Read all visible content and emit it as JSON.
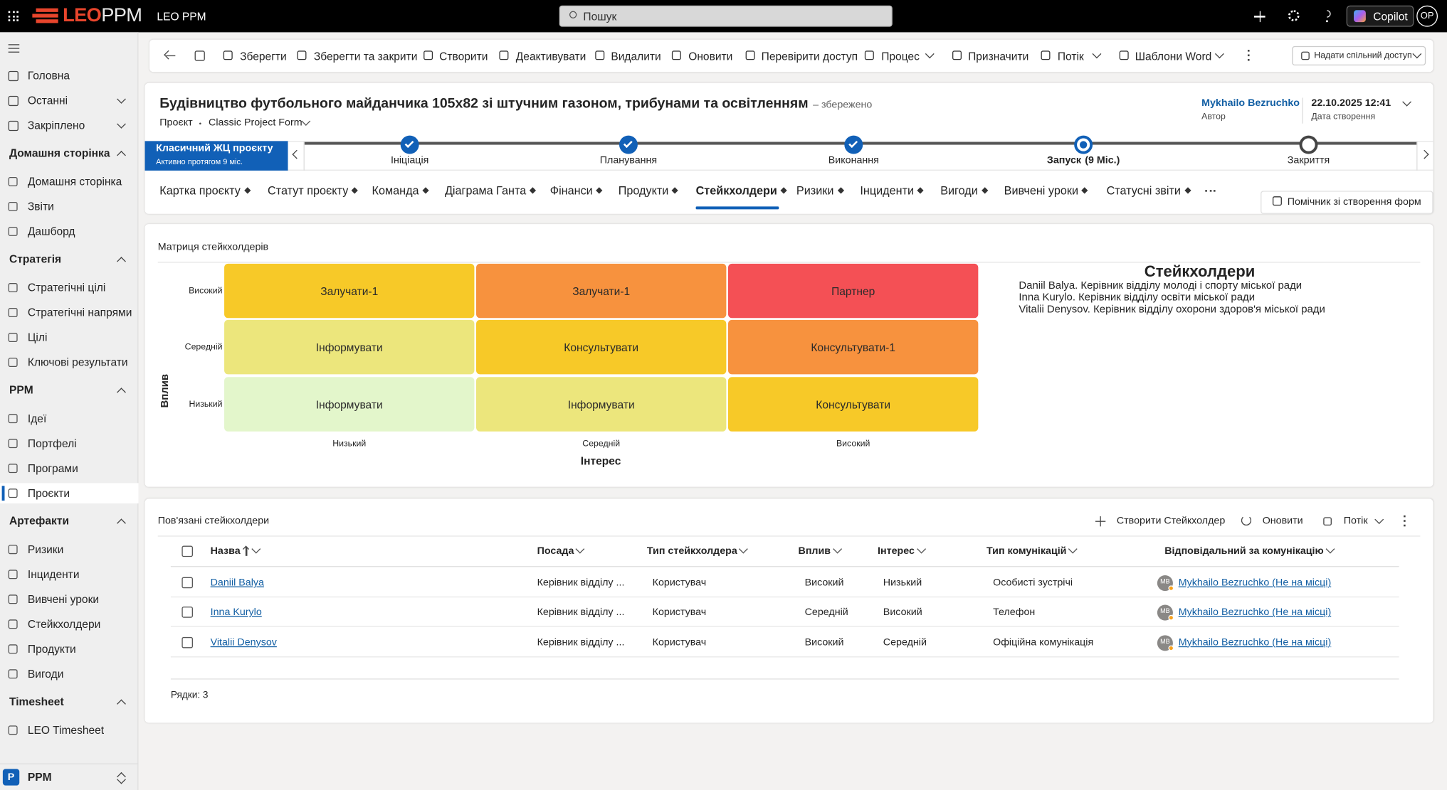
{
  "top_bar": {
    "logo_main": "LEO",
    "logo_sub": "PPM",
    "app_name": "LEO PPM",
    "search_placeholder": "Пошук",
    "copilot": "Copilot",
    "user_initials": "OP"
  },
  "sidebar": {
    "top_items": [
      "Головна",
      "Останні",
      "Закріплено"
    ],
    "groups": [
      {
        "title": "Домашня сторінка",
        "items": [
          "Домашня сторінка",
          "Звіти",
          "Дашборд"
        ]
      },
      {
        "title": "Стратегія",
        "items": [
          "Стратегічні цілі",
          "Стратегічні напрями",
          "Цілі",
          "Ключові результати"
        ]
      },
      {
        "title": "PPM",
        "items": [
          "Ідеї",
          "Портфелі",
          "Програми",
          "Проєкти"
        ]
      },
      {
        "title": "Артефакти",
        "items": [
          "Ризики",
          "Інциденти",
          "Вивчені уроки",
          "Стейкхолдери",
          "Продукти",
          "Вигоди"
        ]
      },
      {
        "title": "Timesheet",
        "items": [
          "LEO Timesheet"
        ]
      }
    ],
    "selected_group": 2,
    "selected_item": 3,
    "area_badge": "P",
    "area_name": "PPM"
  },
  "command_bar": {
    "items": [
      "Зберегти",
      "Зберегти та закрити",
      "Створити",
      "Деактивувати",
      "Видалити",
      "Оновити",
      "Перевірити доступ",
      "Процес",
      "Призначити",
      "Потік",
      "Шаблони Word"
    ],
    "share": "Надати спільний доступ"
  },
  "header": {
    "title": "Будівництво футбольного майданчика 105x82 зі штучним газоном, трибунами та освітленням",
    "save_status": "– збережено",
    "entity": "Проєкт",
    "form": "Classic Project Form",
    "author": "Mykhailo Bezruchko",
    "author_label": "Автор",
    "created": "22.10.2025 12:41",
    "created_label": "Дата створення"
  },
  "process": {
    "name": "Класичний ЖЦ проєкту",
    "duration": "Активно протягом 9 міс.",
    "stages": [
      "Ініціація",
      "Планування",
      "Виконання",
      "Запуск",
      "Закриття"
    ],
    "active_stage": 3,
    "active_stage_duration": "(9 Міс.)"
  },
  "tabs": {
    "items": [
      "Картка проєкту",
      "Статут проєкту",
      "Команда",
      "Діаграма Ганта",
      "Фінанси",
      "Продукти",
      "Стейкхолдери",
      "Ризики",
      "Інциденти",
      "Вигоди",
      "Вивчені уроки",
      "Статусні звіти"
    ],
    "active": 6
  },
  "form_assistant": "Помічник зі створення форм",
  "matrix": {
    "title": "Матриця стейкхолдерів",
    "y_axis": "Вплив",
    "x_axis": "Інтерес",
    "y_labels": [
      "Високий",
      "Середній",
      "Низький"
    ],
    "x_labels": [
      "Низький",
      "Середній",
      "Високий"
    ],
    "cells": [
      [
        {
          "label": "Залучати-1",
          "color": "#f7c928"
        },
        {
          "label": "Залучати-1",
          "color": "#f7923e"
        },
        {
          "label": "Партнер",
          "color": "#f45055"
        }
      ],
      [
        {
          "label": "Інформувати",
          "color": "#ece67c"
        },
        {
          "label": "Консультувати",
          "color": "#f7c928"
        },
        {
          "label": "Консультувати-1",
          "color": "#f7923e"
        }
      ],
      [
        {
          "label": "Інформувати",
          "color": "#e3f6cb"
        },
        {
          "label": "Інформувати",
          "color": "#ece67c"
        },
        {
          "label": "Консультувати",
          "color": "#f7c928"
        }
      ]
    ],
    "legend_title": "Стейкхолдери",
    "legend_lines": [
      "Daniil Balya. Керівник відділу молоді і спорту міської ради",
      "Inna Kurylo. Керівник відділу освіти міської ради",
      "Vitalii Denysov. Керівник відділу охорони здоров'я міської ради"
    ]
  },
  "related": {
    "title": "Пов'язані стейкхолдери",
    "commands": [
      "Створити Стейкхолдер",
      "Оновити",
      "Потік"
    ],
    "columns": [
      "Назва",
      "Посада",
      "Тип стейкхолдера",
      "Вплив",
      "Інтерес",
      "Тип комунікацій",
      "Відповідальний за комунікацію"
    ],
    "rows": [
      [
        "Daniil Balya",
        "Керівник відділу ...",
        "Користувач",
        "Високий",
        "Низький",
        "Особисті зустрічі",
        "MB",
        "Mykhailo Bezruchko (Не на місці)"
      ],
      [
        "Inna Kurylo",
        "Керівник відділу ...",
        "Користувач",
        "Середній",
        "Високий",
        "Телефон",
        "MB",
        "Mykhailo Bezruchko (Не на місці)"
      ],
      [
        "Vitalii Denysov",
        "Керівник відділу ...",
        "Користувач",
        "Високий",
        "Середній",
        "Офіційна комунікація",
        "MB",
        "Mykhailo Bezruchko (Не на місці)"
      ]
    ],
    "footer": "Рядки: 3"
  }
}
